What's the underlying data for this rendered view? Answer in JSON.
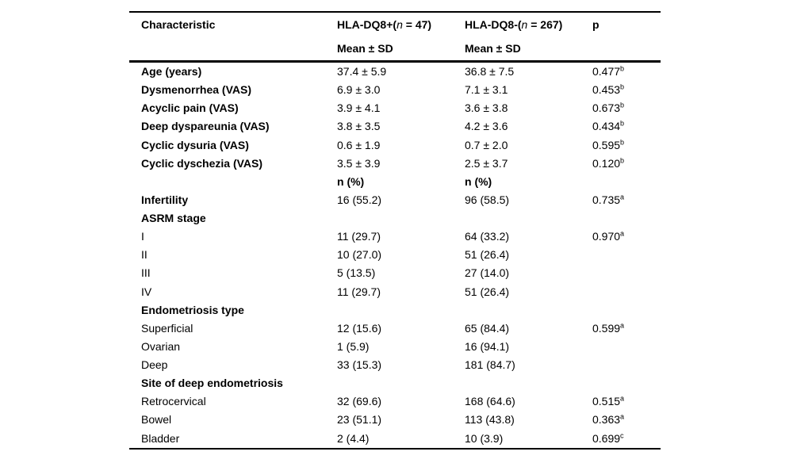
{
  "page": {
    "background": "#ffffff",
    "text_color": "#000000"
  },
  "table": {
    "header": {
      "characteristic": "Characteristic",
      "group_pos": {
        "pre": "HLA-DQ8+(",
        "n": "n",
        "post": " = 47)"
      },
      "group_neg": {
        "pre": "HLA-DQ8-(",
        "n": "n",
        "post": " = 267)"
      },
      "p_label": "p",
      "sub_pos": "Mean ± SD",
      "sub_neg": "Mean ± SD"
    },
    "rows": [
      {
        "label": "Age (years)",
        "label_bold": true,
        "v1": "37.4 ± 5.9",
        "v2": "36.8 ± 7.5",
        "v_bold": false,
        "p": "0.477",
        "p_sup": "b"
      },
      {
        "label": "Dysmenorrhea (VAS)",
        "label_bold": true,
        "v1": "6.9 ± 3.0",
        "v2": "7.1 ± 3.1",
        "v_bold": false,
        "p": "0.453",
        "p_sup": "b"
      },
      {
        "label": "Acyclic pain (VAS)",
        "label_bold": true,
        "v1": "3.9 ± 4.1",
        "v2": "3.6 ± 3.8",
        "v_bold": false,
        "p": "0.673",
        "p_sup": "b"
      },
      {
        "label": "Deep dyspareunia (VAS)",
        "label_bold": true,
        "v1": "3.8 ± 3.5",
        "v2": "4.2 ± 3.6",
        "v_bold": false,
        "p": "0.434",
        "p_sup": "b"
      },
      {
        "label": "Cyclic dysuria (VAS)",
        "label_bold": true,
        "v1": "0.6 ± 1.9",
        "v2": "0.7 ± 2.0",
        "v_bold": false,
        "p": "0.595",
        "p_sup": "b"
      },
      {
        "label": "Cyclic dyschezia (VAS)",
        "label_bold": true,
        "v1": "3.5 ± 3.9",
        "v2": "2.5 ± 3.7",
        "v_bold": false,
        "p": "0.120",
        "p_sup": "b"
      },
      {
        "label": "",
        "label_bold": false,
        "v1": "n (%)",
        "v2": "n (%)",
        "v_bold": true,
        "p": "",
        "p_sup": ""
      },
      {
        "label": "Infertility",
        "label_bold": true,
        "v1": "16 (55.2)",
        "v2": "96 (58.5)",
        "v_bold": false,
        "p": "0.735",
        "p_sup": "a"
      },
      {
        "label": "ASRM stage",
        "label_bold": true,
        "v1": "",
        "v2": "",
        "v_bold": false,
        "p": "",
        "p_sup": ""
      },
      {
        "label": "I",
        "label_bold": false,
        "v1": "11 (29.7)",
        "v2": "64 (33.2)",
        "v_bold": false,
        "p": "0.970",
        "p_sup": "a"
      },
      {
        "label": "II",
        "label_bold": false,
        "v1": "10 (27.0)",
        "v2": "51 (26.4)",
        "v_bold": false,
        "p": "",
        "p_sup": ""
      },
      {
        "label": "III",
        "label_bold": false,
        "v1": "5 (13.5)",
        "v2": "27 (14.0)",
        "v_bold": false,
        "p": "",
        "p_sup": ""
      },
      {
        "label": "IV",
        "label_bold": false,
        "v1": "11 (29.7)",
        "v2": "51 (26.4)",
        "v_bold": false,
        "p": "",
        "p_sup": ""
      },
      {
        "label": "Endometriosis type",
        "label_bold": true,
        "v1": "",
        "v2": "",
        "v_bold": false,
        "p": "",
        "p_sup": ""
      },
      {
        "label": "Superficial",
        "label_bold": false,
        "v1": "12 (15.6)",
        "v2": "65 (84.4)",
        "v_bold": false,
        "p": "0.599",
        "p_sup": "a"
      },
      {
        "label": "Ovarian",
        "label_bold": false,
        "v1": "1 (5.9)",
        "v2": "16 (94.1)",
        "v_bold": false,
        "p": "",
        "p_sup": ""
      },
      {
        "label": "Deep",
        "label_bold": false,
        "v1": "33 (15.3)",
        "v2": "181 (84.7)",
        "v_bold": false,
        "p": "",
        "p_sup": ""
      },
      {
        "label": "Site of deep endometriosis",
        "label_bold": true,
        "v1": "",
        "v2": "",
        "v_bold": false,
        "p": "",
        "p_sup": ""
      },
      {
        "label": "Retrocervical",
        "label_bold": false,
        "v1": "32 (69.6)",
        "v2": "168 (64.6)",
        "v_bold": false,
        "p": "0.515",
        "p_sup": "a"
      },
      {
        "label": "Bowel",
        "label_bold": false,
        "v1": "23 (51.1)",
        "v2": "113 (43.8)",
        "v_bold": false,
        "p": "0.363",
        "p_sup": "a"
      },
      {
        "label": "Bladder",
        "label_bold": false,
        "v1": "2 (4.4)",
        "v2": "10 (3.9)",
        "v_bold": false,
        "p": "0.699",
        "p_sup": "c"
      }
    ]
  }
}
